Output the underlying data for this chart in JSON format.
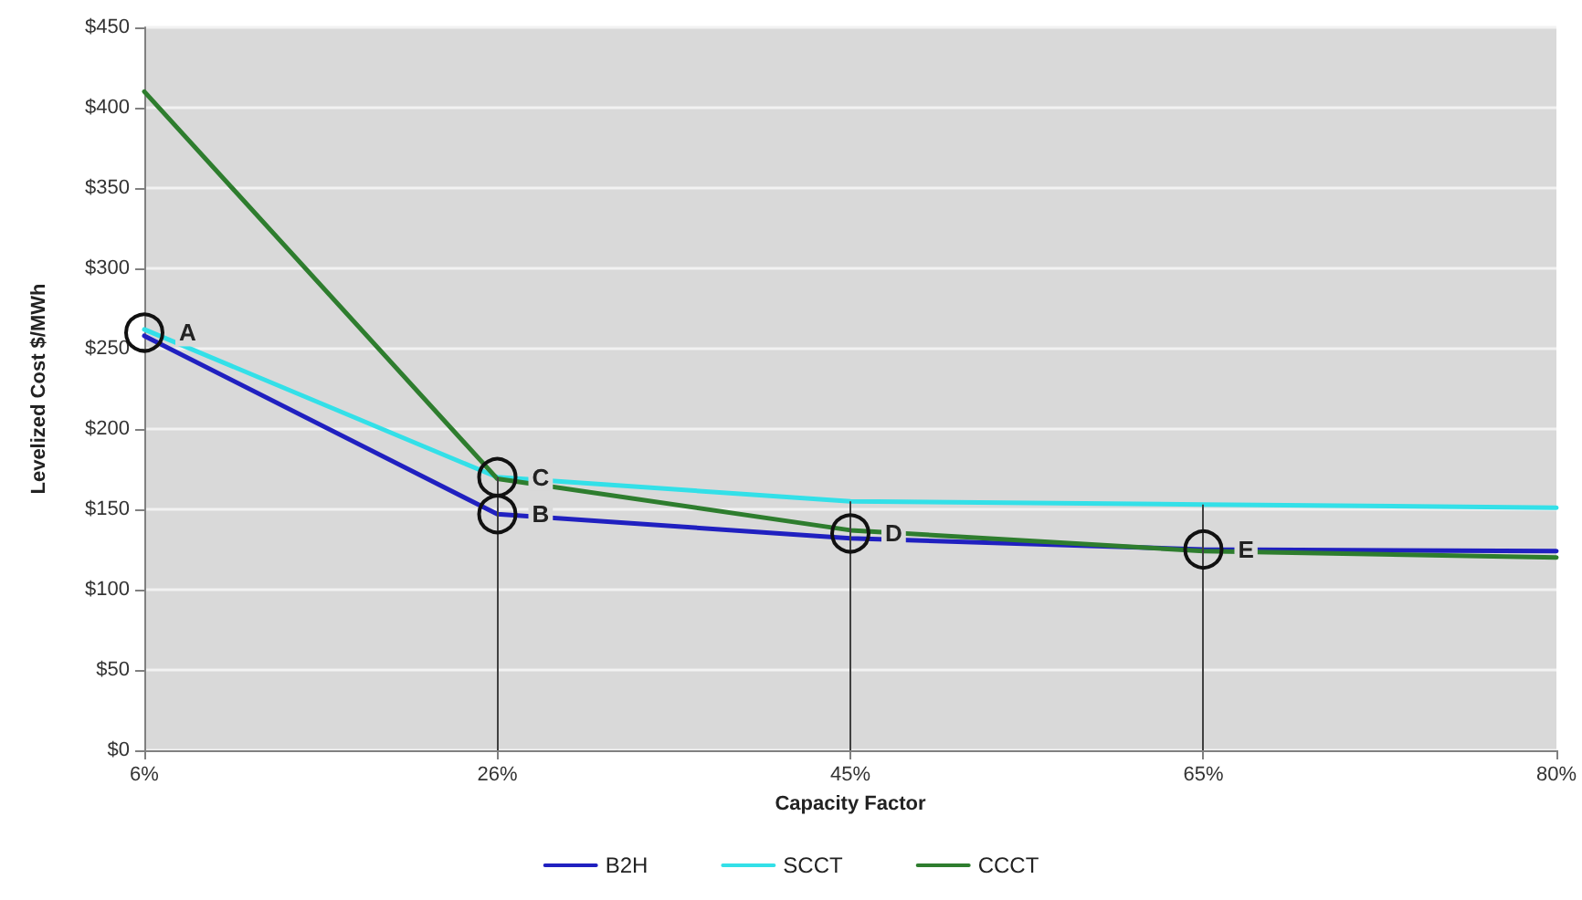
{
  "chart_data": {
    "type": "line",
    "xlabel": "Capacity Factor",
    "ylabel": "Levelized Cost $/MWh",
    "categories": [
      "6%",
      "26%",
      "45%",
      "65%",
      "80%"
    ],
    "series": [
      {
        "name": "B2H",
        "color": "#2020c0",
        "values": [
          258,
          147,
          132,
          125,
          124
        ]
      },
      {
        "name": "SCCT",
        "color": "#33e0e8",
        "values": [
          262,
          170,
          155,
          153,
          151
        ]
      },
      {
        "name": "CCCT",
        "color": "#2e7d2e",
        "values": [
          410,
          169,
          137,
          124,
          120
        ]
      }
    ],
    "ylim": [
      0,
      450
    ],
    "yticks": [
      {
        "value": 0,
        "label": "$0"
      },
      {
        "value": 50,
        "label": "$50"
      },
      {
        "value": 100,
        "label": "$100"
      },
      {
        "value": 150,
        "label": "$150"
      },
      {
        "value": 200,
        "label": "$200"
      },
      {
        "value": 250,
        "label": "$250"
      },
      {
        "value": 300,
        "label": "$300"
      },
      {
        "value": 350,
        "label": "$350"
      },
      {
        "value": 400,
        "label": "$400"
      },
      {
        "value": 450,
        "label": "$450"
      }
    ],
    "annotations": [
      {
        "text": "A",
        "x": "6%",
        "y": 260
      },
      {
        "text": "B",
        "x": "26%",
        "y": 147
      },
      {
        "text": "C",
        "x": "26%",
        "y": 170
      },
      {
        "text": "D",
        "x": "45%",
        "y": 135
      },
      {
        "text": "E",
        "x": "65%",
        "y": 125
      }
    ],
    "ref_lines": [
      {
        "axis": "x",
        "value": "26%",
        "color": "#404040"
      },
      {
        "axis": "x",
        "value": "45%",
        "color": "#404040"
      },
      {
        "axis": "x",
        "value": "65%",
        "color": "#404040"
      }
    ],
    "grid": "y",
    "legend": "bottom",
    "marker": "none",
    "line_style": "solid"
  }
}
